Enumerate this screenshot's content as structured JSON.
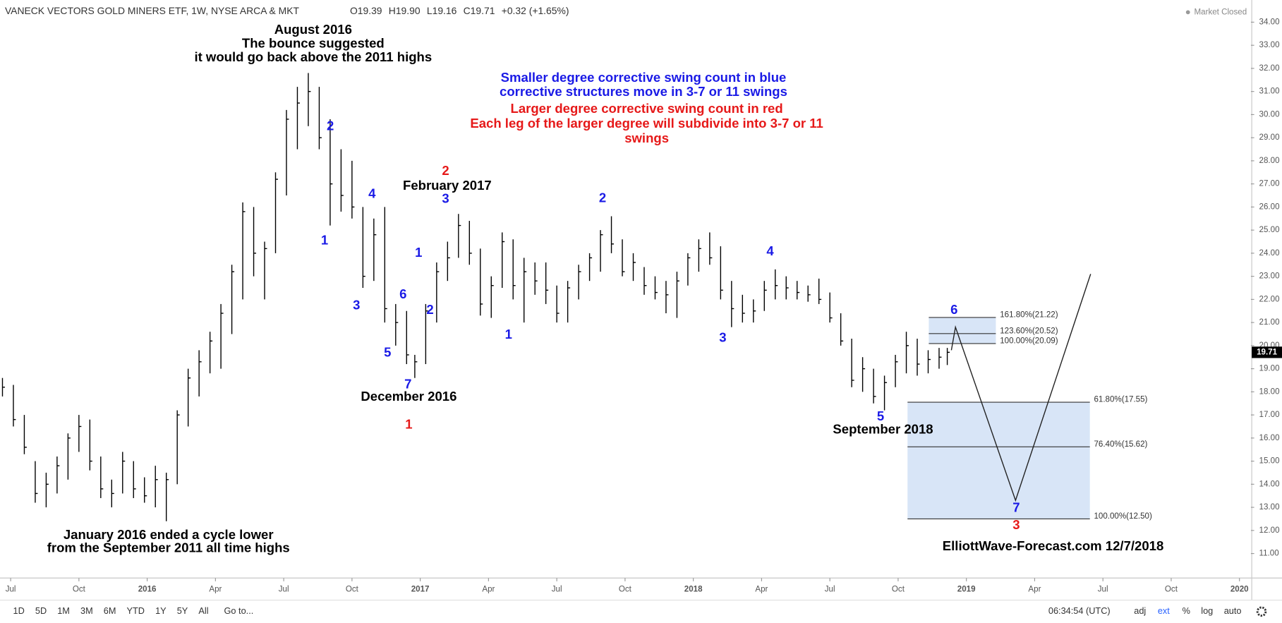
{
  "chart_data": {
    "type": "ohlc",
    "title": "VANECK VECTORS GOLD MINERS ETF, 1W, NYSE ARCA & MKT",
    "ohlc_readout": [
      "O19.39",
      "H19.90",
      "L19.16",
      "C19.71"
    ],
    "change": "+0.32 (+1.65%)",
    "status": "Market Closed",
    "color": "#000000",
    "x": [
      2015.47,
      2015.51,
      2015.55,
      2015.59,
      2015.63,
      2015.67,
      2015.71,
      2015.75,
      2015.79,
      2015.83,
      2015.87,
      2015.91,
      2015.95,
      2015.99,
      2016.03,
      2016.07,
      2016.11,
      2016.15,
      2016.19,
      2016.23,
      2016.27,
      2016.31,
      2016.35,
      2016.39,
      2016.43,
      2016.47,
      2016.51,
      2016.55,
      2016.59,
      2016.63,
      2016.67,
      2016.71,
      2016.75,
      2016.79,
      2016.83,
      2016.87,
      2016.91,
      2016.95,
      2016.98,
      2017.02,
      2017.06,
      2017.1,
      2017.14,
      2017.18,
      2017.22,
      2017.26,
      2017.3,
      2017.34,
      2017.38,
      2017.42,
      2017.46,
      2017.5,
      2017.54,
      2017.58,
      2017.62,
      2017.66,
      2017.7,
      2017.74,
      2017.78,
      2017.82,
      2017.86,
      2017.9,
      2017.94,
      2017.98,
      2018.02,
      2018.06,
      2018.1,
      2018.14,
      2018.18,
      2018.22,
      2018.26,
      2018.3,
      2018.34,
      2018.38,
      2018.42,
      2018.46,
      2018.5,
      2018.54,
      2018.58,
      2018.62,
      2018.66,
      2018.7,
      2018.74,
      2018.78,
      2018.82,
      2018.86,
      2018.9,
      2018.93
    ],
    "high": [
      18.6,
      18.3,
      17.0,
      15.0,
      14.5,
      15.2,
      16.2,
      17.0,
      16.8,
      15.2,
      14.2,
      15.4,
      15.0,
      14.3,
      14.8,
      14.5,
      17.2,
      19.0,
      19.8,
      20.6,
      21.8,
      23.5,
      26.2,
      26.0,
      24.5,
      27.5,
      30.2,
      31.2,
      31.8,
      31.2,
      29.8,
      28.5,
      28.0,
      26.0,
      25.5,
      26.0,
      21.8,
      21.5,
      19.6,
      21.8,
      23.6,
      24.5,
      25.7,
      25.4,
      24.2,
      23.0,
      24.9,
      24.6,
      23.8,
      23.6,
      23.6,
      22.6,
      22.8,
      23.5,
      24.0,
      25.0,
      25.6,
      24.6,
      24.0,
      23.4,
      23.0,
      22.8,
      23.2,
      24.0,
      24.6,
      24.9,
      24.3,
      22.8,
      22.2,
      22.0,
      22.8,
      23.3,
      23.0,
      22.8,
      22.6,
      22.9,
      22.3,
      21.4,
      20.3,
      19.5,
      19.0,
      18.7,
      19.6,
      20.6,
      20.3,
      19.8,
      19.9,
      19.9
    ],
    "low": [
      17.8,
      16.5,
      15.3,
      13.2,
      13.0,
      13.6,
      14.2,
      15.4,
      14.6,
      13.4,
      13.0,
      13.6,
      13.4,
      13.2,
      13.0,
      12.4,
      14.0,
      16.5,
      17.8,
      18.8,
      19.0,
      20.5,
      22.0,
      23.0,
      22.0,
      24.0,
      26.5,
      28.5,
      29.5,
      28.5,
      25.2,
      25.8,
      25.5,
      22.5,
      22.8,
      21.0,
      20.0,
      19.2,
      18.6,
      19.2,
      21.0,
      22.8,
      23.8,
      23.5,
      21.3,
      21.2,
      22.5,
      22.0,
      21.0,
      22.2,
      21.8,
      21.0,
      21.0,
      22.0,
      22.8,
      23.2,
      24.0,
      23.0,
      22.8,
      22.2,
      22.0,
      21.4,
      21.2,
      22.6,
      23.2,
      23.5,
      22.0,
      20.8,
      21.0,
      21.0,
      21.5,
      22.0,
      22.0,
      22.0,
      21.9,
      21.8,
      21.0,
      20.0,
      18.2,
      18.0,
      17.5,
      17.2,
      18.2,
      18.8,
      18.7,
      18.8,
      19.0,
      19.16
    ],
    "close": [
      18.2,
      16.8,
      15.6,
      13.6,
      14.0,
      14.8,
      16.0,
      16.5,
      15.0,
      13.8,
      13.6,
      15.0,
      13.8,
      13.5,
      14.2,
      14.2,
      17.0,
      18.6,
      19.3,
      20.2,
      21.4,
      23.2,
      25.8,
      24.0,
      24.2,
      27.2,
      29.8,
      30.5,
      31.0,
      29.0,
      27.0,
      26.5,
      26.0,
      23.0,
      24.8,
      21.6,
      21.0,
      19.6,
      19.3,
      21.5,
      23.2,
      23.8,
      25.2,
      24.0,
      21.8,
      22.6,
      24.5,
      22.6,
      23.2,
      22.8,
      22.4,
      21.4,
      22.5,
      23.2,
      23.8,
      24.8,
      24.4,
      23.2,
      23.6,
      22.6,
      22.3,
      22.2,
      22.8,
      23.8,
      24.2,
      23.8,
      22.4,
      21.6,
      21.4,
      21.5,
      22.4,
      22.6,
      22.5,
      22.3,
      22.2,
      22.0,
      21.2,
      20.2,
      18.5,
      19.0,
      17.8,
      18.4,
      19.3,
      20.0,
      19.2,
      19.4,
      19.5,
      19.71
    ],
    "xlim": [
      2015.461,
      2020.042
    ],
    "ylim": [
      9.94,
      34.96
    ],
    "xticks": [
      {
        "value": 2015.5,
        "label": "Jul"
      },
      {
        "value": 2015.75,
        "label": "Oct"
      },
      {
        "value": 2016,
        "label": "2016"
      },
      {
        "value": 2016.25,
        "label": "Apr"
      },
      {
        "value": 2016.5,
        "label": "Jul"
      },
      {
        "value": 2016.75,
        "label": "Oct"
      },
      {
        "value": 2017,
        "label": "2017"
      },
      {
        "value": 2017.25,
        "label": "Apr"
      },
      {
        "value": 2017.5,
        "label": "Jul"
      },
      {
        "value": 2017.75,
        "label": "Oct"
      },
      {
        "value": 2018,
        "label": "2018"
      },
      {
        "value": 2018.25,
        "label": "Apr"
      },
      {
        "value": 2018.5,
        "label": "Jul"
      },
      {
        "value": 2018.75,
        "label": "Oct"
      },
      {
        "value": 2019,
        "label": "2019"
      },
      {
        "value": 2019.25,
        "label": "Apr"
      },
      {
        "value": 2019.5,
        "label": "Jul"
      },
      {
        "value": 2019.75,
        "label": "Oct"
      },
      {
        "value": 2020,
        "label": "2020"
      }
    ],
    "yticks": [
      {
        "value": 11,
        "label": "11.00"
      },
      {
        "value": 12,
        "label": "12.00"
      },
      {
        "value": 13,
        "label": "13.00"
      },
      {
        "value": 14,
        "label": "14.00"
      },
      {
        "value": 15,
        "label": "15.00"
      },
      {
        "value": 16,
        "label": "16.00"
      },
      {
        "value": 17,
        "label": "17.00"
      },
      {
        "value": 18,
        "label": "18.00"
      },
      {
        "value": 19,
        "label": "19.00"
      },
      {
        "value": 20,
        "label": "20.00"
      },
      {
        "value": 21,
        "label": "21.00"
      },
      {
        "value": 22,
        "label": "22.00"
      },
      {
        "value": 23,
        "label": "23.00"
      },
      {
        "value": 24,
        "label": "24.00"
      },
      {
        "value": 25,
        "label": "25.00"
      },
      {
        "value": 26,
        "label": "26.00"
      },
      {
        "value": 27,
        "label": "27.00"
      },
      {
        "value": 28,
        "label": "28.00"
      },
      {
        "value": 29,
        "label": "29.00"
      },
      {
        "value": 30,
        "label": "30.00"
      },
      {
        "value": 31,
        "label": "31.00"
      },
      {
        "value": 32,
        "label": "32.00"
      },
      {
        "value": 33,
        "label": "33.00"
      },
      {
        "value": 34,
        "label": "34.00"
      }
    ],
    "fib_upper": [
      {
        "value": 21.22,
        "label": "161.80%(21.22)"
      },
      {
        "value": 20.52,
        "label": "123.60%(20.52)"
      },
      {
        "value": 20.09,
        "label": "100.00%(20.09)"
      }
    ],
    "fib_lower": [
      {
        "value": 17.55,
        "label": "61.80%(17.55)"
      },
      {
        "value": 15.62,
        "label": "76.40%(15.62)"
      },
      {
        "value": 12.5,
        "label": "100.00%(12.50)"
      }
    ],
    "projection": {
      "x": [
        2018.945,
        2018.96,
        2019.18,
        2019.455
      ],
      "y": [
        19.8,
        20.8,
        13.3,
        23.1
      ]
    },
    "annotations": [
      {
        "lines": [
          "August 2016",
          "The bounce suggested",
          "it would go back above the 2011 highs"
        ],
        "color": "#000000"
      },
      {
        "lines": [
          "Smaller degree corrective swing count in blue",
          "corrective structures move in 3-7 or 11 swings"
        ],
        "color": "#1a1ae6"
      },
      {
        "lines": [
          "Larger degree corrective swing count in red",
          "Each leg of the larger degree will subdivide into 3-7 or 11",
          "swings"
        ],
        "color": "#e61919"
      },
      {
        "lines": [
          "February 2017"
        ],
        "color": "#000000"
      },
      {
        "lines": [
          "December 2016"
        ],
        "color": "#000000"
      },
      {
        "lines": [
          "September 2018"
        ],
        "color": "#000000"
      },
      {
        "lines": [
          "January 2016 ended a cycle lower",
          "from the September 2011 all time highs"
        ],
        "color": "#000000"
      },
      {
        "lines": [
          "ElliottWave-Forecast.com 12/7/2018"
        ],
        "color": "#000000"
      }
    ],
    "wave_labels": [
      {
        "text": "2",
        "color": "#1a1ae6"
      },
      {
        "text": "1",
        "color": "#1a1ae6"
      },
      {
        "text": "4",
        "color": "#1a1ae6"
      },
      {
        "text": "3",
        "color": "#1a1ae6"
      },
      {
        "text": "5",
        "color": "#1a1ae6"
      },
      {
        "text": "6",
        "color": "#1a1ae6"
      },
      {
        "text": "7",
        "color": "#1a1ae6"
      },
      {
        "text": "1",
        "color": "#1a1ae6"
      },
      {
        "text": "2",
        "color": "#1a1ae6"
      },
      {
        "text": "3",
        "color": "#1a1ae6"
      },
      {
        "text": "2",
        "color": "#e61919"
      },
      {
        "text": "1",
        "color": "#e61919"
      },
      {
        "text": "2",
        "color": "#1a1ae6"
      },
      {
        "text": "1",
        "color": "#1a1ae6"
      },
      {
        "text": "4",
        "color": "#1a1ae6"
      },
      {
        "text": "3",
        "color": "#1a1ae6"
      },
      {
        "text": "5",
        "color": "#1a1ae6"
      },
      {
        "text": "6",
        "color": "#1a1ae6"
      },
      {
        "text": "7",
        "color": "#1a1ae6"
      },
      {
        "text": "3",
        "color": "#e61919"
      }
    ]
  },
  "toolbar": {
    "ranges": [
      "1D",
      "5D",
      "1M",
      "3M",
      "6M",
      "YTD",
      "1Y",
      "5Y",
      "All"
    ],
    "goto": "Go to...",
    "time": "06:34:54 (UTC)",
    "options": [
      "adj",
      "ext",
      "%",
      "log",
      "auto"
    ]
  }
}
